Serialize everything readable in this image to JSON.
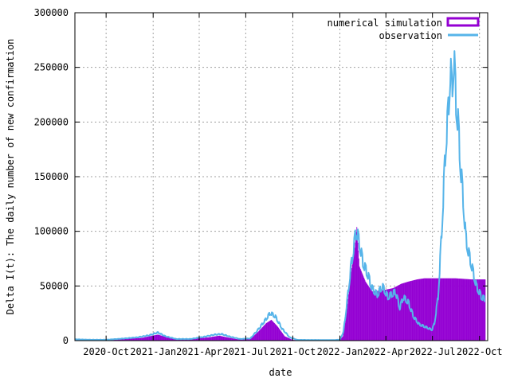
{
  "chart_data": {
    "type": "area",
    "title": "",
    "xlabel": "date",
    "ylabel": "Delta I(t): The daily number of new confirmation",
    "x_range": [
      "2020-08-01",
      "2022-10-17"
    ],
    "ylim": [
      0,
      300000
    ],
    "y_ticks": [
      0,
      50000,
      100000,
      150000,
      200000,
      250000,
      300000
    ],
    "y_tick_labels": [
      "0",
      "50000",
      "100000",
      "150000",
      "200000",
      "250000",
      "300000"
    ],
    "x_ticks": [
      "2020-10-01",
      "2021-01-01",
      "2021-04-01",
      "2021-07-01",
      "2021-10-01",
      "2022-01-01",
      "2022-04-01",
      "2022-07-01",
      "2022-10-01"
    ],
    "x_tick_labels": [
      "2020-Oct",
      "2021-Jan",
      "2021-Apr",
      "2021-Jul",
      "2021-Oct",
      "2022-Jan",
      "2022-Apr",
      "2022-Jul",
      "2022-Oct"
    ],
    "grid": true,
    "legend_position": "top-right",
    "series": [
      {
        "name": "numerical simulation",
        "style": "filled boxes",
        "color": "#9400d3",
        "points": [
          [
            "2020-08-01",
            500
          ],
          [
            "2020-09-15",
            800
          ],
          [
            "2020-11-01",
            1500
          ],
          [
            "2020-12-10",
            2500
          ],
          [
            "2021-01-10",
            5500
          ],
          [
            "2021-01-25",
            3500
          ],
          [
            "2021-02-15",
            1500
          ],
          [
            "2021-03-15",
            1500
          ],
          [
            "2021-04-20",
            3000
          ],
          [
            "2021-05-10",
            4500
          ],
          [
            "2021-05-25",
            3000
          ],
          [
            "2021-06-15",
            1200
          ],
          [
            "2021-07-10",
            1500
          ],
          [
            "2021-07-25",
            8000
          ],
          [
            "2021-08-10",
            16000
          ],
          [
            "2021-08-20",
            19000
          ],
          [
            "2021-09-01",
            13000
          ],
          [
            "2021-09-15",
            4000
          ],
          [
            "2021-10-01",
            600
          ],
          [
            "2021-12-20",
            500
          ],
          [
            "2022-01-01",
            800
          ],
          [
            "2022-01-07",
            4000
          ],
          [
            "2022-01-14",
            25000
          ],
          [
            "2022-01-22",
            60000
          ],
          [
            "2022-01-30",
            85000
          ],
          [
            "2022-02-03",
            104000
          ],
          [
            "2022-02-08",
            68000
          ],
          [
            "2022-02-20",
            54000
          ],
          [
            "2022-03-05",
            45000
          ],
          [
            "2022-03-25",
            46000
          ],
          [
            "2022-04-15",
            48000
          ],
          [
            "2022-05-01",
            52000
          ],
          [
            "2022-05-15",
            54000
          ],
          [
            "2022-06-01",
            56000
          ],
          [
            "2022-06-15",
            57000
          ],
          [
            "2022-07-15",
            57000
          ],
          [
            "2022-08-15",
            57000
          ],
          [
            "2022-09-15",
            56000
          ],
          [
            "2022-10-12",
            56000
          ]
        ]
      },
      {
        "name": "observation",
        "style": "line",
        "color": "#56b4e9",
        "points": [
          [
            "2020-08-01",
            1200
          ],
          [
            "2020-09-01",
            800
          ],
          [
            "2020-10-01",
            800
          ],
          [
            "2020-11-01",
            1800
          ],
          [
            "2020-12-01",
            3000
          ],
          [
            "2020-12-25",
            5000
          ],
          [
            "2021-01-10",
            7500
          ],
          [
            "2021-01-25",
            4000
          ],
          [
            "2021-02-15",
            1500
          ],
          [
            "2021-03-15",
            1500
          ],
          [
            "2021-04-10",
            3500
          ],
          [
            "2021-05-01",
            5500
          ],
          [
            "2021-05-15",
            6000
          ],
          [
            "2021-06-01",
            3500
          ],
          [
            "2021-06-20",
            1500
          ],
          [
            "2021-07-10",
            2000
          ],
          [
            "2021-07-25",
            10000
          ],
          [
            "2021-08-10",
            20000
          ],
          [
            "2021-08-18",
            25500
          ],
          [
            "2021-08-28",
            22000
          ],
          [
            "2021-09-10",
            11000
          ],
          [
            "2021-09-25",
            3000
          ],
          [
            "2021-10-10",
            700
          ],
          [
            "2021-12-20",
            500
          ],
          [
            "2022-01-01",
            900
          ],
          [
            "2022-01-08",
            8000
          ],
          [
            "2022-01-15",
            35000
          ],
          [
            "2022-01-22",
            65000
          ],
          [
            "2022-01-28",
            85000
          ],
          [
            "2022-02-02",
            102000
          ],
          [
            "2022-02-08",
            90000
          ],
          [
            "2022-02-15",
            72000
          ],
          [
            "2022-02-25",
            60000
          ],
          [
            "2022-03-05",
            48000
          ],
          [
            "2022-03-15",
            42000
          ],
          [
            "2022-03-25",
            50000
          ],
          [
            "2022-04-05",
            40000
          ],
          [
            "2022-04-20",
            45000
          ],
          [
            "2022-04-28",
            30000
          ],
          [
            "2022-05-05",
            40000
          ],
          [
            "2022-05-15",
            35000
          ],
          [
            "2022-05-25",
            22000
          ],
          [
            "2022-06-05",
            15000
          ],
          [
            "2022-06-20",
            12000
          ],
          [
            "2022-06-30",
            10000
          ],
          [
            "2022-07-05",
            16000
          ],
          [
            "2022-07-12",
            40000
          ],
          [
            "2022-07-18",
            90000
          ],
          [
            "2022-07-22",
            130000
          ],
          [
            "2022-07-27",
            180000
          ],
          [
            "2022-08-01",
            210000
          ],
          [
            "2022-08-05",
            250000
          ],
          [
            "2022-08-08",
            230000
          ],
          [
            "2022-08-12",
            260000
          ],
          [
            "2022-08-16",
            220000
          ],
          [
            "2022-08-20",
            200000
          ],
          [
            "2022-08-25",
            160000
          ],
          [
            "2022-08-30",
            130000
          ],
          [
            "2022-09-04",
            95000
          ],
          [
            "2022-09-10",
            80000
          ],
          [
            "2022-09-15",
            70000
          ],
          [
            "2022-09-20",
            60000
          ],
          [
            "2022-09-25",
            50000
          ],
          [
            "2022-09-30",
            45000
          ],
          [
            "2022-10-05",
            40000
          ],
          [
            "2022-10-12",
            38000
          ]
        ]
      }
    ]
  }
}
